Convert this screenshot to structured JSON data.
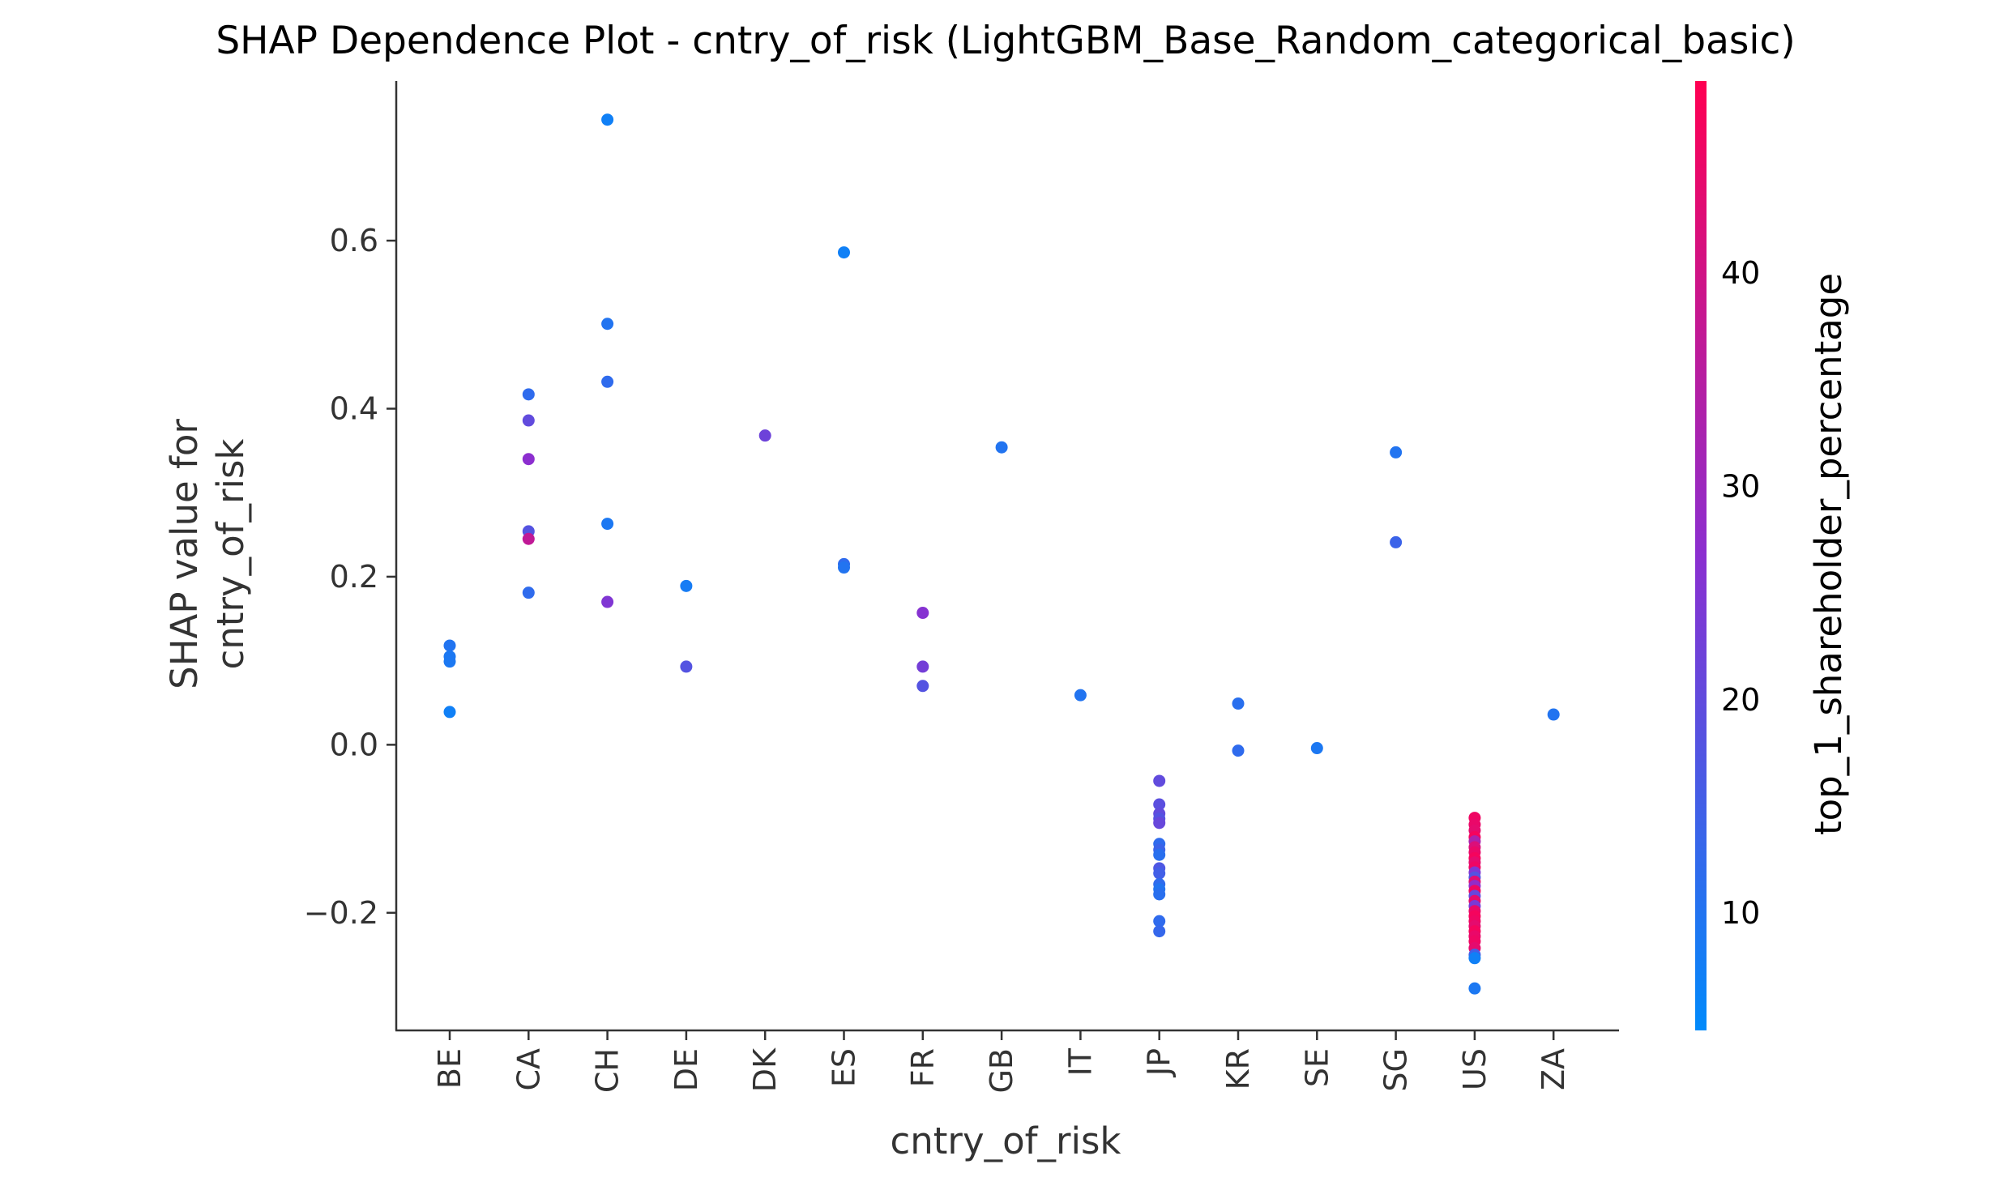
{
  "chart_data": {
    "type": "scatter",
    "title": "SHAP Dependence Plot - cntry_of_risk (LightGBM_Base_Random_categorical_basic)",
    "xlabel": "cntry_of_risk",
    "ylabel_lines": [
      "SHAP value for",
      "cntry_of_risk"
    ],
    "categories": [
      "BE",
      "CA",
      "CH",
      "DE",
      "DK",
      "ES",
      "FR",
      "GB",
      "IT",
      "JP",
      "KR",
      "SE",
      "SG",
      "US",
      "ZA"
    ],
    "yticks": [
      -0.2,
      0.0,
      0.2,
      0.4,
      0.6
    ],
    "ytick_labels": [
      "−0.2",
      "0.0",
      "0.2",
      "0.4",
      "0.6"
    ],
    "ylim": [
      -0.34,
      0.79
    ],
    "grid": false,
    "colorbar": {
      "label": "top_1_shareholder_percentage",
      "range": [
        4.5,
        49
      ],
      "ticks": [
        10,
        20,
        30,
        40
      ],
      "tick_labels": [
        "10",
        "20",
        "30",
        "40"
      ],
      "colors": [
        "#008afb",
        "#ff0052"
      ]
    },
    "points": [
      {
        "x": "BE",
        "y": 0.118,
        "c": 10
      },
      {
        "x": "BE",
        "y": 0.105,
        "c": 9
      },
      {
        "x": "BE",
        "y": 0.099,
        "c": 9
      },
      {
        "x": "BE",
        "y": 0.039,
        "c": 7
      },
      {
        "x": "CA",
        "y": 0.417,
        "c": 12
      },
      {
        "x": "CA",
        "y": 0.386,
        "c": 20
      },
      {
        "x": "CA",
        "y": 0.34,
        "c": 27
      },
      {
        "x": "CA",
        "y": 0.254,
        "c": 18
      },
      {
        "x": "CA",
        "y": 0.245,
        "c": 37
      },
      {
        "x": "CA",
        "y": 0.181,
        "c": 12
      },
      {
        "x": "CH",
        "y": 0.744,
        "c": 7
      },
      {
        "x": "CH",
        "y": 0.501,
        "c": 10
      },
      {
        "x": "CH",
        "y": 0.432,
        "c": 12
      },
      {
        "x": "CH",
        "y": 0.263,
        "c": 9
      },
      {
        "x": "CH",
        "y": 0.17,
        "c": 25
      },
      {
        "x": "DE",
        "y": 0.189,
        "c": 8
      },
      {
        "x": "DE",
        "y": 0.093,
        "c": 18
      },
      {
        "x": "DK",
        "y": 0.368,
        "c": 22
      },
      {
        "x": "ES",
        "y": 0.586,
        "c": 7
      },
      {
        "x": "ES",
        "y": 0.215,
        "c": 12
      },
      {
        "x": "ES",
        "y": 0.211,
        "c": 10
      },
      {
        "x": "FR",
        "y": 0.157,
        "c": 26
      },
      {
        "x": "FR",
        "y": 0.093,
        "c": 23
      },
      {
        "x": "FR",
        "y": 0.07,
        "c": 18
      },
      {
        "x": "GB",
        "y": 0.354,
        "c": 10
      },
      {
        "x": "IT",
        "y": 0.059,
        "c": 10
      },
      {
        "x": "JP",
        "y": -0.043,
        "c": 20
      },
      {
        "x": "JP",
        "y": -0.071,
        "c": 19
      },
      {
        "x": "JP",
        "y": -0.082,
        "c": 20
      },
      {
        "x": "JP",
        "y": -0.088,
        "c": 18
      },
      {
        "x": "JP",
        "y": -0.093,
        "c": 21
      },
      {
        "x": "JP",
        "y": -0.118,
        "c": 12
      },
      {
        "x": "JP",
        "y": -0.125,
        "c": 14
      },
      {
        "x": "JP",
        "y": -0.131,
        "c": 11
      },
      {
        "x": "JP",
        "y": -0.147,
        "c": 17
      },
      {
        "x": "JP",
        "y": -0.153,
        "c": 15
      },
      {
        "x": "JP",
        "y": -0.166,
        "c": 12
      },
      {
        "x": "JP",
        "y": -0.172,
        "c": 10
      },
      {
        "x": "JP",
        "y": -0.178,
        "c": 11
      },
      {
        "x": "JP",
        "y": -0.21,
        "c": 12
      },
      {
        "x": "JP",
        "y": -0.222,
        "c": 13
      },
      {
        "x": "KR",
        "y": 0.049,
        "c": 11
      },
      {
        "x": "KR",
        "y": -0.007,
        "c": 12
      },
      {
        "x": "SE",
        "y": -0.004,
        "c": 9
      },
      {
        "x": "SG",
        "y": 0.348,
        "c": 10
      },
      {
        "x": "SG",
        "y": 0.241,
        "c": 14
      },
      {
        "x": "US",
        "y": -0.087,
        "c": 46
      },
      {
        "x": "US",
        "y": -0.095,
        "c": 45
      },
      {
        "x": "US",
        "y": -0.102,
        "c": 44
      },
      {
        "x": "US",
        "y": -0.11,
        "c": 47
      },
      {
        "x": "US",
        "y": -0.115,
        "c": 33
      },
      {
        "x": "US",
        "y": -0.122,
        "c": 42
      },
      {
        "x": "US",
        "y": -0.128,
        "c": 45
      },
      {
        "x": "US",
        "y": -0.135,
        "c": 47
      },
      {
        "x": "US",
        "y": -0.14,
        "c": 44
      },
      {
        "x": "US",
        "y": -0.146,
        "c": 46
      },
      {
        "x": "US",
        "y": -0.152,
        "c": 25
      },
      {
        "x": "US",
        "y": -0.158,
        "c": 18
      },
      {
        "x": "US",
        "y": -0.163,
        "c": 43
      },
      {
        "x": "US",
        "y": -0.168,
        "c": 28
      },
      {
        "x": "US",
        "y": -0.174,
        "c": 46
      },
      {
        "x": "US",
        "y": -0.18,
        "c": 21
      },
      {
        "x": "US",
        "y": -0.186,
        "c": 44
      },
      {
        "x": "US",
        "y": -0.192,
        "c": 24
      },
      {
        "x": "US",
        "y": -0.198,
        "c": 45
      },
      {
        "x": "US",
        "y": -0.204,
        "c": 47
      },
      {
        "x": "US",
        "y": -0.21,
        "c": 46
      },
      {
        "x": "US",
        "y": -0.216,
        "c": 44
      },
      {
        "x": "US",
        "y": -0.222,
        "c": 47
      },
      {
        "x": "US",
        "y": -0.228,
        "c": 45
      },
      {
        "x": "US",
        "y": -0.234,
        "c": 46
      },
      {
        "x": "US",
        "y": -0.242,
        "c": 44
      },
      {
        "x": "US",
        "y": -0.25,
        "c": 15
      },
      {
        "x": "US",
        "y": -0.254,
        "c": 7
      },
      {
        "x": "US",
        "y": -0.29,
        "c": 9
      },
      {
        "x": "ZA",
        "y": 0.036,
        "c": 10
      }
    ]
  }
}
